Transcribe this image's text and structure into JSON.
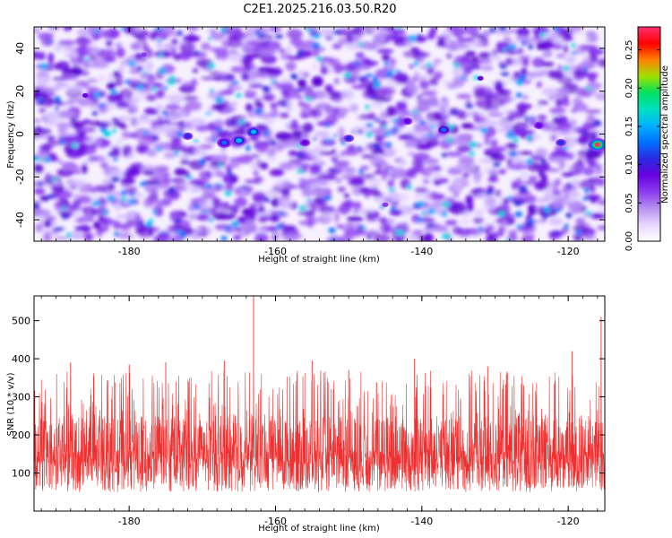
{
  "title": "C2E1.2025.216.03.50.R20",
  "colors": {
    "snr_line": "#f03030",
    "colormap": [
      "#ffffff",
      "#e6d6ff",
      "#b890f0",
      "#8a3cf0",
      "#6a00e0",
      "#2a2ae0",
      "#0070ff",
      "#00b0ff",
      "#00e0c0",
      "#00e060",
      "#a0e000",
      "#ff8000",
      "#ff0000",
      "#ff3070"
    ]
  },
  "chart_data": [
    {
      "type": "heatmap",
      "xlabel": "Height of straight line (km)",
      "ylabel": "Frequency (Hz)",
      "xlim": [
        -193,
        -115
      ],
      "ylim": [
        -50,
        50
      ],
      "xticks": [
        -180,
        -160,
        -140,
        -120
      ],
      "yticks": [
        -40,
        -20,
        0,
        20,
        40
      ],
      "xtick_labels": [
        "-180",
        "-160",
        "-140",
        "-120"
      ],
      "ytick_labels": [
        "-40",
        "-20",
        "0",
        "20",
        "40"
      ],
      "colorbar": {
        "label": "Normalized spectral amplitude",
        "range": [
          0,
          0.28
        ],
        "ticks": [
          0.0,
          0.05,
          0.1,
          0.15,
          0.2,
          0.25
        ],
        "tick_labels": [
          "0.00",
          "0.05",
          "0.10",
          "0.15",
          "0.20",
          "0.25"
        ]
      },
      "hotspots": [
        {
          "x": -116,
          "y": -5,
          "value": 0.28
        },
        {
          "x": -165,
          "y": -3,
          "value": 0.17
        },
        {
          "x": -163,
          "y": 1,
          "value": 0.16
        },
        {
          "x": -167,
          "y": -4,
          "value": 0.14
        },
        {
          "x": -137,
          "y": 2,
          "value": 0.13
        },
        {
          "x": -150,
          "y": -2,
          "value": 0.12
        },
        {
          "x": -121,
          "y": -4,
          "value": 0.12
        },
        {
          "x": -172,
          "y": -1,
          "value": 0.11
        },
        {
          "x": -156,
          "y": -4,
          "value": 0.1
        },
        {
          "x": -124,
          "y": 4,
          "value": 0.1
        },
        {
          "x": -142,
          "y": 6,
          "value": 0.1
        },
        {
          "x": -186,
          "y": 18,
          "value": 0.09
        },
        {
          "x": -132,
          "y": 26,
          "value": 0.09
        },
        {
          "x": -178,
          "y": 37,
          "value": 0.08
        },
        {
          "x": -145,
          "y": -33,
          "value": 0.08
        }
      ]
    },
    {
      "type": "line",
      "xlabel": "Height of straight line (km)",
      "ylabel": "SNR (10 * v/v)",
      "xlim": [
        -193,
        -115
      ],
      "ylim": [
        0,
        565
      ],
      "xticks": [
        -180,
        -160,
        -140,
        -120
      ],
      "yticks": [
        100,
        200,
        300,
        400,
        500
      ],
      "xtick_labels": [
        "-180",
        "-160",
        "-140",
        "-120"
      ],
      "ytick_labels": [
        "100",
        "200",
        "300",
        "400",
        "500"
      ],
      "baseline": 140,
      "peaks": [
        {
          "x": -163,
          "y": 565
        },
        {
          "x": -115.5,
          "y": 510
        },
        {
          "x": -114.8,
          "y": 505
        },
        {
          "x": -119.5,
          "y": 420
        },
        {
          "x": -180,
          "y": 385
        },
        {
          "x": -175,
          "y": 390
        },
        {
          "x": -188,
          "y": 390
        },
        {
          "x": -167,
          "y": 395
        },
        {
          "x": -155,
          "y": 395
        },
        {
          "x": -141,
          "y": 400
        },
        {
          "x": -131,
          "y": 380
        },
        {
          "x": -150,
          "y": 370
        }
      ]
    }
  ]
}
